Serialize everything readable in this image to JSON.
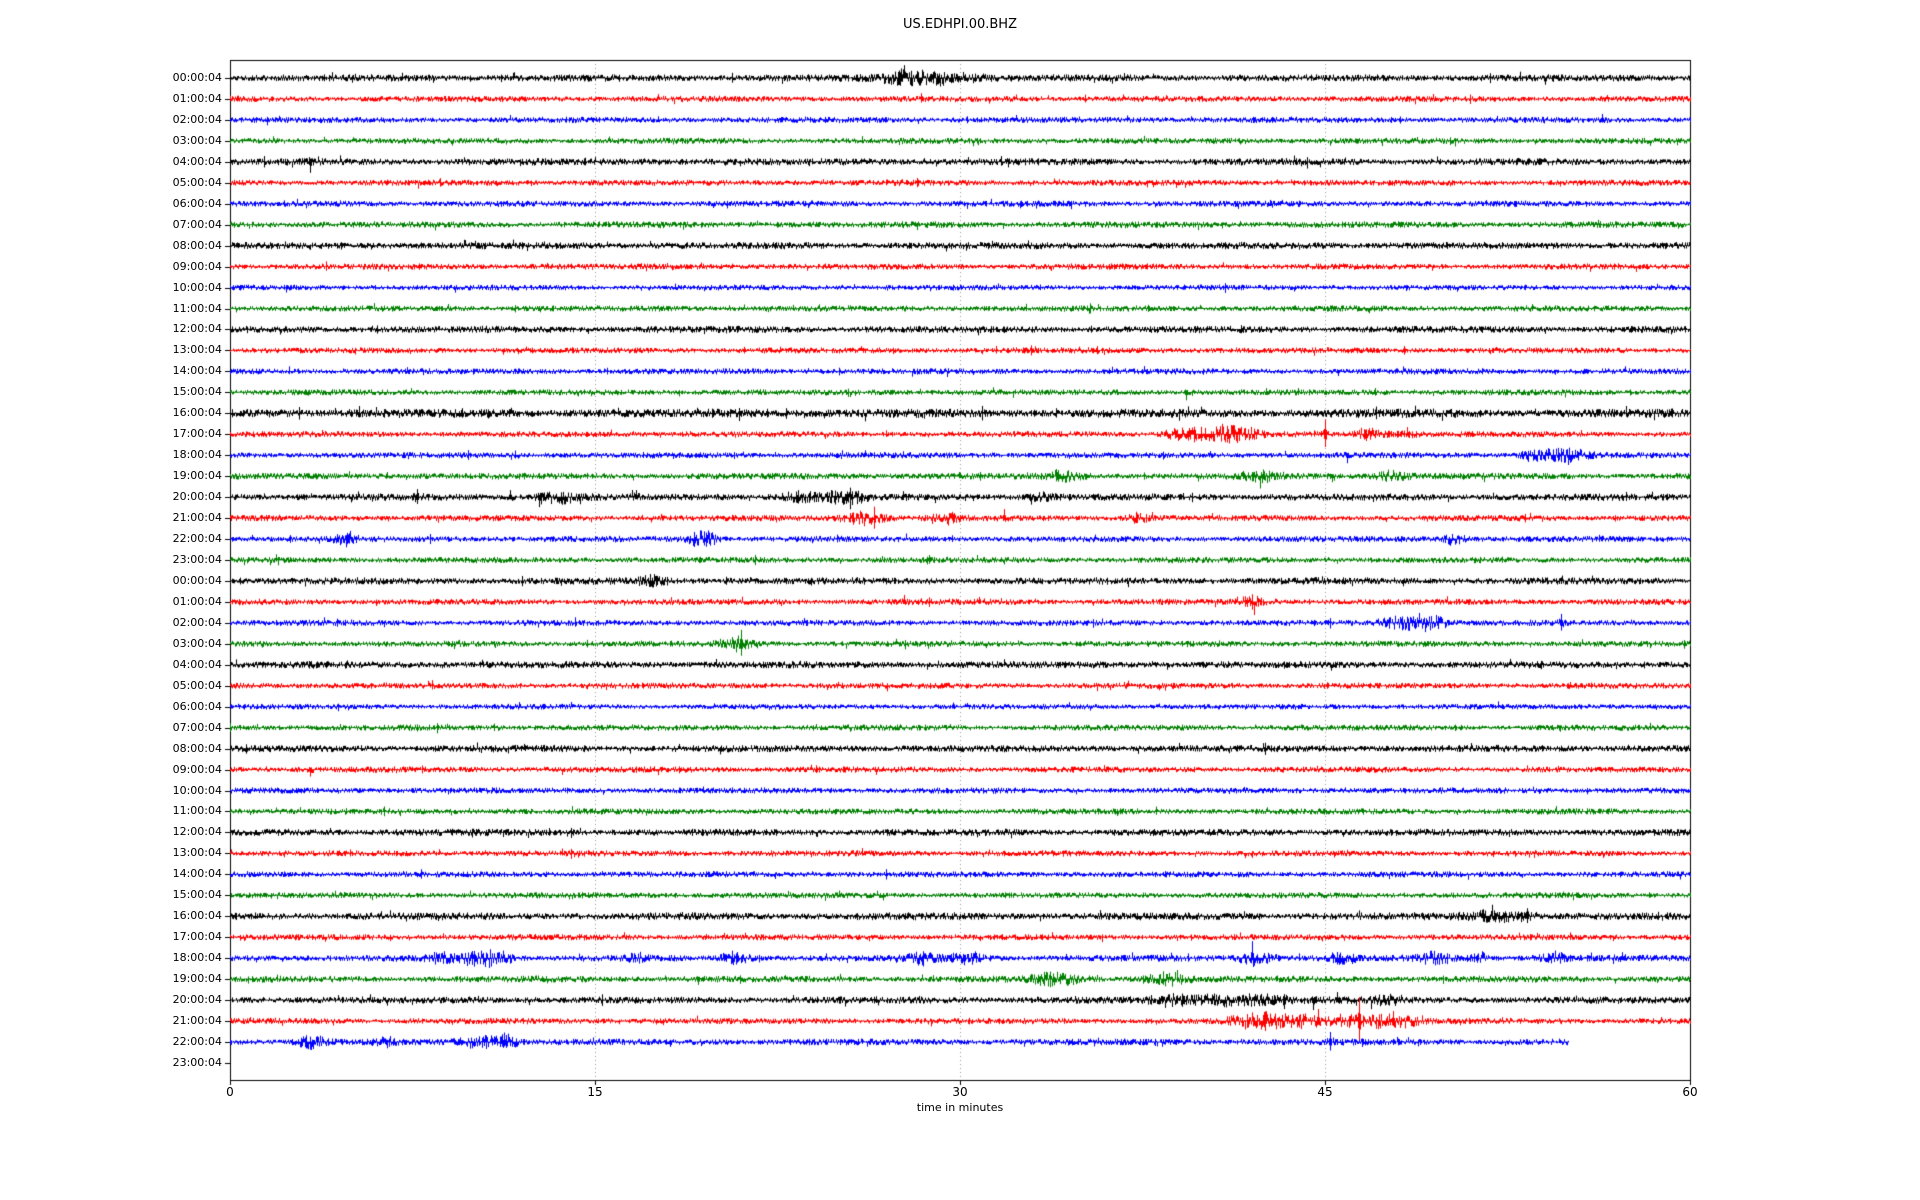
{
  "chart_data": {
    "type": "line",
    "subtype": "helicorder-dayplot-seismogram",
    "title": "US.EDHPI.00.BHZ",
    "xlabel": "time in minutes",
    "xlim": [
      0,
      60
    ],
    "x_ticks": [
      "0",
      "15",
      "30",
      "45",
      "60"
    ],
    "x_gridlines_minutes": [
      15,
      30,
      45
    ],
    "grid_style": "dotted-vertical",
    "minutes_per_row": 60,
    "trace_color_cycle": [
      "#000000",
      "#ff0000",
      "#0000ff",
      "#008000"
    ],
    "axis_color": "#000000",
    "background_color": "#ffffff",
    "event_note": "events are amplitude bursts/spikes: type b=burst(gaussian envelope), s=spike up, d=spike down, u=spike up+down; fields [type, minute, width_min, amplitude_px]",
    "rows": [
      {
        "label": "00:00:04",
        "color": "#000000",
        "amp": 2.8,
        "end": 60,
        "events": [
          [
            "b",
            28.8,
            1.2,
            7
          ],
          [
            "b",
            27.6,
            0.4,
            5
          ]
        ]
      },
      {
        "label": "01:00:04",
        "color": "#ff0000",
        "amp": 2.4,
        "end": 60,
        "events": []
      },
      {
        "label": "02:00:04",
        "color": "#0000ff",
        "amp": 2.4,
        "end": 60,
        "events": [
          [
            "s",
            56.4,
            0,
            6
          ]
        ]
      },
      {
        "label": "03:00:04",
        "color": "#008000",
        "amp": 2.4,
        "end": 60,
        "events": []
      },
      {
        "label": "04:00:04",
        "color": "#000000",
        "amp": 2.8,
        "end": 60,
        "events": [
          [
            "d",
            3.3,
            0,
            11
          ]
        ]
      },
      {
        "label": "05:00:04",
        "color": "#ff0000",
        "amp": 2.4,
        "end": 60,
        "events": []
      },
      {
        "label": "06:00:04",
        "color": "#0000ff",
        "amp": 2.4,
        "end": 60,
        "events": []
      },
      {
        "label": "07:00:04",
        "color": "#008000",
        "amp": 2.6,
        "end": 60,
        "events": []
      },
      {
        "label": "08:00:04",
        "color": "#000000",
        "amp": 2.8,
        "end": 60,
        "events": []
      },
      {
        "label": "09:00:04",
        "color": "#ff0000",
        "amp": 2.4,
        "end": 60,
        "events": []
      },
      {
        "label": "10:00:04",
        "color": "#0000ff",
        "amp": 2.2,
        "end": 60,
        "events": []
      },
      {
        "label": "11:00:04",
        "color": "#008000",
        "amp": 2.4,
        "end": 60,
        "events": []
      },
      {
        "label": "12:00:04",
        "color": "#000000",
        "amp": 2.8,
        "end": 60,
        "events": []
      },
      {
        "label": "13:00:04",
        "color": "#ff0000",
        "amp": 2.4,
        "end": 60,
        "events": []
      },
      {
        "label": "14:00:04",
        "color": "#0000ff",
        "amp": 2.4,
        "end": 60,
        "events": []
      },
      {
        "label": "15:00:04",
        "color": "#008000",
        "amp": 2.4,
        "end": 60,
        "events": [
          [
            "d",
            39.3,
            0,
            8
          ]
        ]
      },
      {
        "label": "16:00:04",
        "color": "#000000",
        "amp": 3.5,
        "end": 60,
        "events": []
      },
      {
        "label": "17:00:04",
        "color": "#ff0000",
        "amp": 2.4,
        "end": 60,
        "events": [
          [
            "b",
            38.8,
            0.3,
            5
          ],
          [
            "b",
            40.3,
            0.8,
            8
          ],
          [
            "b",
            41.5,
            0.5,
            6
          ],
          [
            "u",
            45.0,
            0,
            15
          ],
          [
            "b",
            46.8,
            0.4,
            5
          ],
          [
            "b",
            48.3,
            0.5,
            4
          ]
        ]
      },
      {
        "label": "18:00:04",
        "color": "#0000ff",
        "amp": 2.4,
        "end": 60,
        "events": [
          [
            "d",
            45.9,
            0,
            8
          ],
          [
            "b",
            53.4,
            0.3,
            5
          ],
          [
            "b",
            54.6,
            0.6,
            6
          ],
          [
            "b",
            55.3,
            0.4,
            5
          ]
        ]
      },
      {
        "label": "19:00:04",
        "color": "#008000",
        "amp": 2.6,
        "end": 60,
        "events": [
          [
            "b",
            34.3,
            0.5,
            5
          ],
          [
            "b",
            42.2,
            0.5,
            5
          ],
          [
            "d",
            42.4,
            0,
            7
          ],
          [
            "d",
            45.3,
            0,
            6
          ],
          [
            "b",
            47.7,
            0.5,
            5
          ]
        ]
      },
      {
        "label": "20:00:04",
        "color": "#000000",
        "amp": 2.8,
        "end": 60,
        "events": [
          [
            "u",
            7.7,
            0,
            8
          ],
          [
            "s",
            11.5,
            0,
            7
          ],
          [
            "d",
            12.7,
            0,
            10
          ],
          [
            "b",
            13.6,
            0.6,
            6
          ],
          [
            "s",
            16.7,
            0,
            7
          ],
          [
            "b",
            23.3,
            0.4,
            5
          ],
          [
            "b",
            24.6,
            0.5,
            5
          ],
          [
            "b",
            25.6,
            0.4,
            5
          ],
          [
            "b",
            33.2,
            0.4,
            4
          ]
        ]
      },
      {
        "label": "21:00:04",
        "color": "#ff0000",
        "amp": 2.4,
        "end": 60,
        "events": [
          [
            "b",
            26.0,
            0.6,
            7
          ],
          [
            "b",
            29.5,
            0.5,
            5
          ],
          [
            "s",
            31.8,
            0,
            9
          ],
          [
            "b",
            37.3,
            0.4,
            5
          ]
        ]
      },
      {
        "label": "22:00:04",
        "color": "#0000ff",
        "amp": 2.4,
        "end": 60,
        "events": [
          [
            "b",
            4.7,
            0.3,
            6
          ],
          [
            "b",
            19.4,
            0.4,
            9
          ],
          [
            "b",
            50.3,
            0.4,
            5
          ]
        ]
      },
      {
        "label": "23:00:04",
        "color": "#008000",
        "amp": 2.4,
        "end": 60,
        "events": []
      },
      {
        "label": "00:00:04",
        "color": "#000000",
        "amp": 2.8,
        "end": 60,
        "events": [
          [
            "b",
            17.3,
            0.4,
            5
          ]
        ]
      },
      {
        "label": "01:00:04",
        "color": "#ff0000",
        "amp": 2.4,
        "end": 60,
        "events": [
          [
            "s",
            27.7,
            0,
            7
          ],
          [
            "s",
            30.8,
            0,
            5
          ],
          [
            "b",
            42.0,
            0.5,
            6
          ]
        ]
      },
      {
        "label": "02:00:04",
        "color": "#0000ff",
        "amp": 2.4,
        "end": 60,
        "events": [
          [
            "b",
            48.4,
            0.7,
            8
          ],
          [
            "b",
            49.6,
            0.3,
            6
          ],
          [
            "u",
            54.7,
            0,
            9
          ]
        ]
      },
      {
        "label": "03:00:04",
        "color": "#008000",
        "amp": 2.4,
        "end": 60,
        "events": [
          [
            "b",
            20.8,
            0.5,
            5
          ],
          [
            "u",
            21.0,
            0,
            14
          ]
        ]
      },
      {
        "label": "04:00:04",
        "color": "#000000",
        "amp": 2.8,
        "end": 60,
        "events": []
      },
      {
        "label": "05:00:04",
        "color": "#ff0000",
        "amp": 2.4,
        "end": 60,
        "events": []
      },
      {
        "label": "06:00:04",
        "color": "#0000ff",
        "amp": 2.2,
        "end": 60,
        "events": []
      },
      {
        "label": "07:00:04",
        "color": "#008000",
        "amp": 2.4,
        "end": 60,
        "events": []
      },
      {
        "label": "08:00:04",
        "color": "#000000",
        "amp": 2.8,
        "end": 60,
        "events": []
      },
      {
        "label": "09:00:04",
        "color": "#ff0000",
        "amp": 2.4,
        "end": 60,
        "events": [
          [
            "d",
            3.3,
            0,
            7
          ]
        ]
      },
      {
        "label": "10:00:04",
        "color": "#0000ff",
        "amp": 2.4,
        "end": 60,
        "events": []
      },
      {
        "label": "11:00:04",
        "color": "#008000",
        "amp": 2.4,
        "end": 60,
        "events": []
      },
      {
        "label": "12:00:04",
        "color": "#000000",
        "amp": 2.8,
        "end": 60,
        "events": []
      },
      {
        "label": "13:00:04",
        "color": "#ff0000",
        "amp": 2.4,
        "end": 60,
        "events": []
      },
      {
        "label": "14:00:04",
        "color": "#0000ff",
        "amp": 2.4,
        "end": 60,
        "events": []
      },
      {
        "label": "15:00:04",
        "color": "#008000",
        "amp": 2.4,
        "end": 60,
        "events": []
      },
      {
        "label": "16:00:04",
        "color": "#000000",
        "amp": 3.0,
        "end": 60,
        "events": [
          [
            "b",
            52.0,
            0.8,
            6
          ],
          [
            "s",
            51.5,
            0,
            7
          ],
          [
            "u",
            53.3,
            0,
            8
          ]
        ]
      },
      {
        "label": "17:00:04",
        "color": "#ff0000",
        "amp": 2.4,
        "end": 60,
        "events": []
      },
      {
        "label": "18:00:04",
        "color": "#0000ff",
        "amp": 2.6,
        "end": 60,
        "events": [
          [
            "b",
            8.8,
            0.5,
            5
          ],
          [
            "b",
            10.6,
            0.7,
            8
          ],
          [
            "b",
            16.7,
            0.3,
            5
          ],
          [
            "b",
            20.7,
            0.4,
            6
          ],
          [
            "b",
            28.4,
            0.4,
            6
          ],
          [
            "b",
            30.2,
            0.5,
            6
          ],
          [
            "b",
            42.2,
            0.5,
            7
          ],
          [
            "s",
            42.0,
            0,
            17
          ],
          [
            "b",
            45.7,
            0.4,
            6
          ],
          [
            "b",
            49.5,
            0.5,
            6
          ],
          [
            "b",
            51.3,
            0.3,
            5
          ],
          [
            "b",
            54.4,
            0.4,
            6
          ],
          [
            "s",
            57.2,
            0,
            6
          ]
        ]
      },
      {
        "label": "19:00:04",
        "color": "#008000",
        "amp": 2.6,
        "end": 60,
        "events": [
          [
            "b",
            33.9,
            0.7,
            6
          ],
          [
            "b",
            38.5,
            0.6,
            6
          ]
        ]
      },
      {
        "label": "20:00:04",
        "color": "#000000",
        "amp": 2.8,
        "end": 60,
        "events": [
          [
            "b",
            38.8,
            0.5,
            4
          ],
          [
            "b",
            40.5,
            0.8,
            5
          ],
          [
            "b",
            42.5,
            0.8,
            5
          ],
          [
            "d",
            43.3,
            0,
            9
          ],
          [
            "d",
            44.5,
            0,
            10
          ],
          [
            "s",
            45.5,
            0,
            8
          ],
          [
            "b",
            47.5,
            0.5,
            4
          ]
        ]
      },
      {
        "label": "21:00:04",
        "color": "#ff0000",
        "amp": 2.4,
        "end": 60,
        "events": [
          [
            "b",
            42.3,
            0.8,
            8
          ],
          [
            "b",
            44.0,
            0.6,
            6
          ],
          [
            "s",
            44.7,
            0,
            12
          ],
          [
            "b",
            45.8,
            0.5,
            7
          ],
          [
            "u",
            46.4,
            0,
            24
          ],
          [
            "b",
            47.3,
            0.5,
            6
          ],
          [
            "s",
            47.8,
            0,
            10
          ],
          [
            "b",
            48.4,
            0.4,
            5
          ]
        ]
      },
      {
        "label": "22:00:04",
        "color": "#0000ff",
        "amp": 2.6,
        "end": 55,
        "events": [
          [
            "b",
            3.3,
            0.4,
            6
          ],
          [
            "d",
            3.4,
            0,
            7
          ],
          [
            "b",
            6.4,
            0.3,
            4
          ],
          [
            "b",
            10.3,
            0.6,
            7
          ],
          [
            "b",
            11.4,
            0.3,
            6
          ],
          [
            "u",
            45.2,
            0,
            10
          ]
        ]
      },
      {
        "label": "23:00:04",
        "color": "#008000",
        "amp": 0,
        "end": 0,
        "events": []
      }
    ]
  }
}
